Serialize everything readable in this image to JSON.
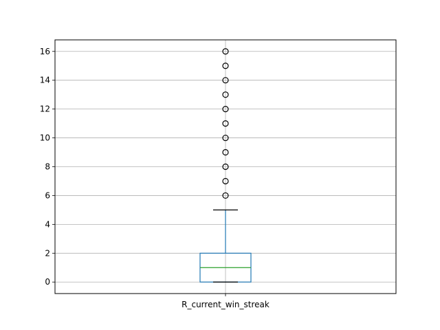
{
  "chart_data": {
    "type": "box",
    "category": "R_current_win_streak",
    "ylim": [
      -0.8,
      16.8
    ],
    "yticks": [
      0,
      2,
      4,
      6,
      8,
      10,
      12,
      14,
      16
    ],
    "grid": true,
    "box": {
      "whisker_low": 0,
      "q1": 0,
      "median": 1,
      "q3": 2,
      "whisker_high": 5
    },
    "outliers": [
      6,
      7,
      8,
      9,
      10,
      11,
      12,
      13,
      14,
      15,
      16
    ],
    "colors": {
      "box": "#1f77b4",
      "median": "#2ca02c",
      "whisker_cap": "#000000",
      "grid": "#b0b0b0",
      "outlier_edge": "#000000"
    }
  }
}
